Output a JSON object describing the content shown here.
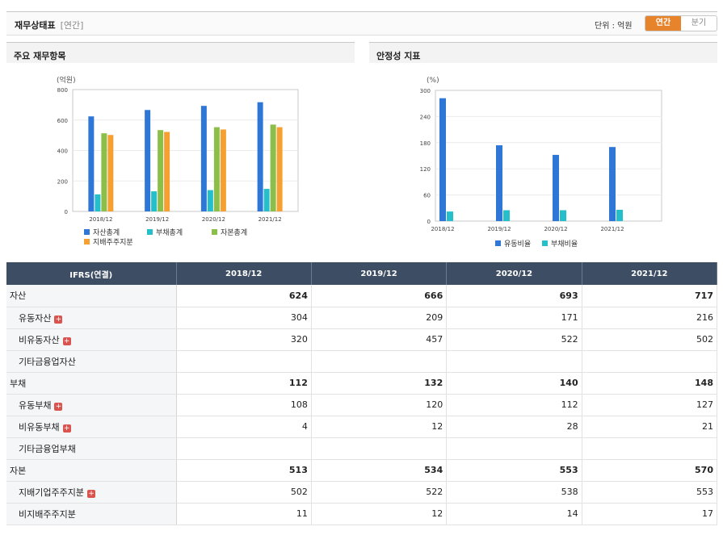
{
  "header": {
    "title": "재무상태표",
    "subtitle": "[연간]",
    "unit": "단위 : 억원",
    "toggle_annual": "연간",
    "toggle_quarter": "분기"
  },
  "panels": {
    "left_title": "주요 재무항목",
    "right_title": "안정성 지표"
  },
  "chart_data": [
    {
      "type": "bar",
      "title": "주요 재무항목",
      "ylabel": "(억원)",
      "categories": [
        "2018/12",
        "2019/12",
        "2020/12",
        "2021/12"
      ],
      "ylim": [
        0,
        800
      ],
      "yticks": [
        0,
        200,
        400,
        600,
        800
      ],
      "series": [
        {
          "name": "자산총계",
          "color": "#2f77d6",
          "values": [
            624,
            666,
            693,
            717
          ]
        },
        {
          "name": "부채총계",
          "color": "#24bfcb",
          "values": [
            112,
            132,
            140,
            148
          ]
        },
        {
          "name": "자본총계",
          "color": "#8cbf4a",
          "values": [
            513,
            534,
            553,
            570
          ]
        },
        {
          "name": "지배주주지분",
          "color": "#f5a030",
          "values": [
            502,
            522,
            538,
            553
          ]
        }
      ],
      "legend": "bottom"
    },
    {
      "type": "bar",
      "title": "안정성 지표",
      "ylabel": "(%)",
      "categories": [
        "2018/12",
        "2019/12",
        "2020/12",
        "2021/12"
      ],
      "ylim": [
        0,
        300
      ],
      "yticks": [
        0,
        60,
        120,
        180,
        240,
        300
      ],
      "series": [
        {
          "name": "유동비율",
          "color": "#2f77d6",
          "values": [
            282,
            174,
            152,
            170
          ]
        },
        {
          "name": "부채비율",
          "color": "#24bfcb",
          "values": [
            22,
            25,
            25,
            26
          ]
        }
      ],
      "legend": "bottom"
    }
  ],
  "table": {
    "header": [
      "IFRS(연결)",
      "2018/12",
      "2019/12",
      "2020/12",
      "2021/12"
    ],
    "rows": [
      {
        "label": "자산",
        "level": "major",
        "plus": false,
        "values": [
          "624",
          "666",
          "693",
          "717"
        ]
      },
      {
        "label": "유동자산",
        "level": "minor",
        "plus": true,
        "values": [
          "304",
          "209",
          "171",
          "216"
        ]
      },
      {
        "label": "비유동자산",
        "level": "minor",
        "plus": true,
        "values": [
          "320",
          "457",
          "522",
          "502"
        ]
      },
      {
        "label": "기타금융업자산",
        "level": "minor",
        "plus": false,
        "values": [
          "",
          "",
          "",
          ""
        ]
      },
      {
        "label": "부채",
        "level": "major",
        "plus": false,
        "values": [
          "112",
          "132",
          "140",
          "148"
        ]
      },
      {
        "label": "유동부채",
        "level": "minor",
        "plus": true,
        "values": [
          "108",
          "120",
          "112",
          "127"
        ]
      },
      {
        "label": "비유동부채",
        "level": "minor",
        "plus": true,
        "values": [
          "4",
          "12",
          "28",
          "21"
        ]
      },
      {
        "label": "기타금융업부채",
        "level": "minor",
        "plus": false,
        "values": [
          "",
          "",
          "",
          ""
        ]
      },
      {
        "label": "자본",
        "level": "major",
        "plus": false,
        "values": [
          "513",
          "534",
          "553",
          "570"
        ]
      },
      {
        "label": "지배기업주주지분",
        "level": "minor",
        "plus": true,
        "values": [
          "502",
          "522",
          "538",
          "553"
        ]
      },
      {
        "label": "비지배주주지분",
        "level": "minor",
        "plus": false,
        "values": [
          "11",
          "12",
          "14",
          "17"
        ]
      }
    ]
  }
}
